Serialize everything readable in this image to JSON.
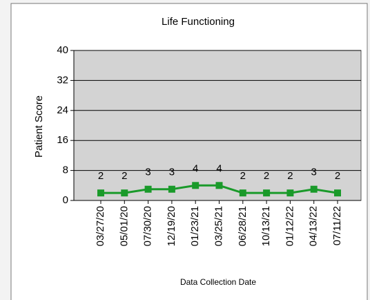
{
  "chart_data": {
    "type": "line",
    "title": "Life Functioning",
    "y_label": "Patient Score",
    "x_label": "Data Collection Date",
    "categories": [
      "03/27/20",
      "05/01/20",
      "07/30/20",
      "12/19/20",
      "01/23/21",
      "03/25/21",
      "06/28/21",
      "10/13/21",
      "01/12/22",
      "04/13/22",
      "07/11/22"
    ],
    "series": [
      {
        "name": "Patient Score",
        "color": "#1a9a2a",
        "values": [
          2,
          2,
          3,
          3,
          4,
          4,
          2,
          2,
          2,
          3,
          2
        ]
      }
    ],
    "ylim": [
      0,
      40
    ],
    "yticks": [
      0,
      8,
      16,
      24,
      32,
      40
    ],
    "grid": true
  }
}
